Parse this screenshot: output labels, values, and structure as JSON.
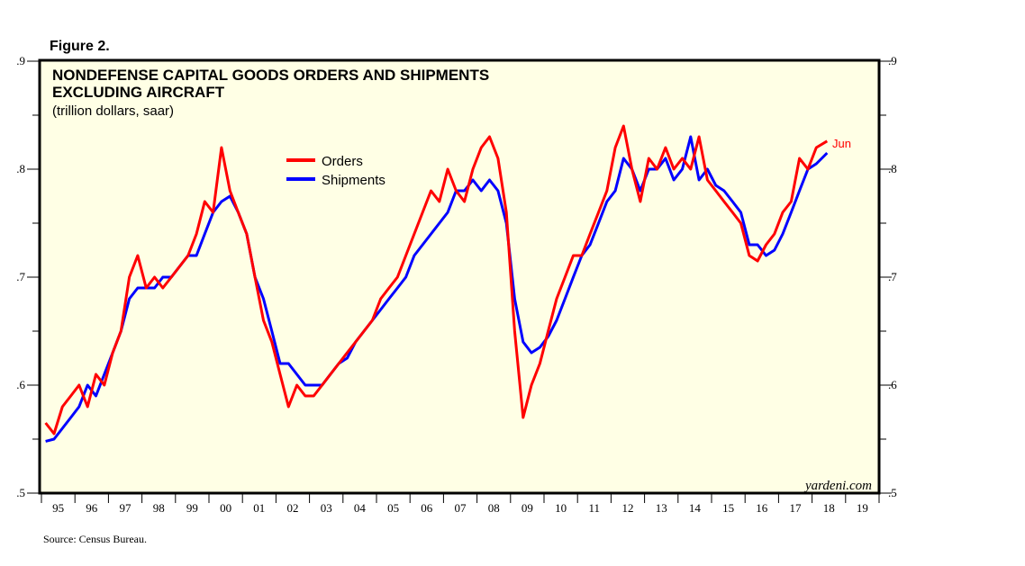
{
  "figure_label": "Figure 2.",
  "source": "Source: Census Bureau.",
  "watermark": "yardeni.com",
  "chart_data": {
    "type": "line",
    "title": "NONDEFENSE CAPITAL GOODS ORDERS AND SHIPMENTS",
    "title_line2": "EXCLUDING AIRCRAFT",
    "subtitle": "(trillion dollars, saar)",
    "xlabel": "",
    "ylabel": "",
    "ylim": [
      0.5,
      0.9
    ],
    "yticks": [
      ".5",
      ".6",
      ".7",
      ".8",
      ".9"
    ],
    "ytick_values": [
      0.5,
      0.6,
      0.7,
      0.8,
      0.9
    ],
    "xlim": [
      1995,
      2020
    ],
    "xtick_labels": [
      "95",
      "96",
      "97",
      "98",
      "99",
      "00",
      "01",
      "02",
      "03",
      "04",
      "05",
      "06",
      "07",
      "08",
      "09",
      "10",
      "11",
      "12",
      "13",
      "14",
      "15",
      "16",
      "17",
      "18",
      "19"
    ],
    "x_start": 1995.125,
    "x_step": 0.25,
    "last_label": "Jun",
    "legend_placement": "top-center",
    "grid": false,
    "series": [
      {
        "name": "Orders",
        "color": "#ff0000",
        "values": [
          0.565,
          0.555,
          0.58,
          0.59,
          0.6,
          0.58,
          0.61,
          0.6,
          0.63,
          0.65,
          0.7,
          0.72,
          0.69,
          0.7,
          0.69,
          0.7,
          0.71,
          0.72,
          0.74,
          0.77,
          0.76,
          0.82,
          0.78,
          0.76,
          0.74,
          0.7,
          0.66,
          0.64,
          0.61,
          0.58,
          0.6,
          0.59,
          0.59,
          0.6,
          0.61,
          0.62,
          0.63,
          0.64,
          0.65,
          0.66,
          0.68,
          0.69,
          0.7,
          0.72,
          0.74,
          0.76,
          0.78,
          0.77,
          0.8,
          0.78,
          0.77,
          0.8,
          0.82,
          0.83,
          0.81,
          0.76,
          0.65,
          0.57,
          0.6,
          0.62,
          0.65,
          0.68,
          0.7,
          0.72,
          0.72,
          0.74,
          0.76,
          0.78,
          0.82,
          0.84,
          0.8,
          0.77,
          0.81,
          0.8,
          0.82,
          0.8,
          0.81,
          0.8,
          0.83,
          0.79,
          0.78,
          0.77,
          0.76,
          0.75,
          0.72,
          0.715,
          0.73,
          0.74,
          0.76,
          0.77,
          0.81,
          0.8,
          0.82,
          0.826
        ]
      },
      {
        "name": "Shipments",
        "color": "#0000ff",
        "values": [
          0.548,
          0.55,
          0.56,
          0.57,
          0.58,
          0.6,
          0.59,
          0.61,
          0.63,
          0.65,
          0.68,
          0.69,
          0.69,
          0.69,
          0.7,
          0.7,
          0.71,
          0.72,
          0.72,
          0.74,
          0.76,
          0.77,
          0.775,
          0.76,
          0.74,
          0.7,
          0.68,
          0.65,
          0.62,
          0.62,
          0.61,
          0.6,
          0.6,
          0.6,
          0.61,
          0.62,
          0.625,
          0.64,
          0.65,
          0.66,
          0.67,
          0.68,
          0.69,
          0.7,
          0.72,
          0.73,
          0.74,
          0.75,
          0.76,
          0.78,
          0.78,
          0.79,
          0.78,
          0.79,
          0.78,
          0.75,
          0.68,
          0.64,
          0.63,
          0.635,
          0.645,
          0.66,
          0.68,
          0.7,
          0.72,
          0.73,
          0.75,
          0.77,
          0.78,
          0.81,
          0.8,
          0.78,
          0.8,
          0.8,
          0.81,
          0.79,
          0.8,
          0.83,
          0.79,
          0.8,
          0.785,
          0.78,
          0.77,
          0.76,
          0.73,
          0.73,
          0.72,
          0.725,
          0.74,
          0.76,
          0.78,
          0.8,
          0.805,
          0.815
        ]
      }
    ]
  }
}
